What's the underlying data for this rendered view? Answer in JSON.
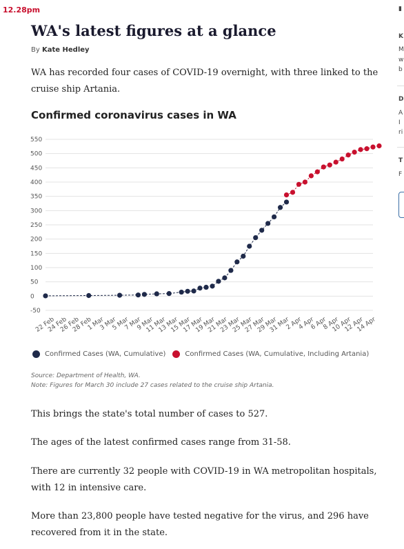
{
  "timestamp": "12.28pm",
  "article": {
    "headline": "WA's latest figures at a glance",
    "byline_prefix": "By",
    "author": "Kate Hedley",
    "intro": "WA has recorded four cases of COVID-19 overnight, with three linked to the cruise ship Artania.",
    "paragraphs": [
      "This brings the state's total number of cases to 527.",
      "The ages of the latest confirmed cases range from 31-58.",
      "There are currently 32 people with COVID-19 in WA metropolitan hospitals, with 12 in intensive care.",
      "More than 23,800 people have tested negative for the virus, and 296 have recovered from it in the state."
    ]
  },
  "chart_title": "Confirmed coronavirus cases in WA",
  "chart_data": {
    "type": "scatter",
    "title": "Confirmed coronavirus cases in WA",
    "xlabel": "",
    "ylabel": "",
    "ylim": [
      -50,
      550
    ],
    "yticks": [
      550,
      500,
      450,
      400,
      350,
      300,
      250,
      200,
      150,
      100,
      50,
      0,
      -50
    ],
    "xlim": [
      "2020-02-21",
      "2020-04-14"
    ],
    "xticks": [
      "22 Feb",
      "24 Feb",
      "26 Feb",
      "28 Feb",
      "1 Mar",
      "3 Mar",
      "5 Mar",
      "7 Mar",
      "9 Mar",
      "11 Mar",
      "13 Mar",
      "15 Mar",
      "17 Mar",
      "19 Mar",
      "21 Mar",
      "23 Mar",
      "25 Mar",
      "27 Mar",
      "29 Mar",
      "31 Mar",
      "2 Apr",
      "4 Apr",
      "6 Apr",
      "8 Apr",
      "10 Apr",
      "12 Apr",
      "14 Apr"
    ],
    "grid": true,
    "legend_position": "bottom",
    "series": [
      {
        "name": "Confirmed Cases (WA, Cumulative)",
        "color": "#1f2a4a",
        "points": [
          [
            "2020-02-21",
            1
          ],
          [
            "2020-02-28",
            2
          ],
          [
            "2020-03-04",
            3
          ],
          [
            "2020-03-07",
            4
          ],
          [
            "2020-03-08",
            6
          ],
          [
            "2020-03-10",
            8
          ],
          [
            "2020-03-12",
            9
          ],
          [
            "2020-03-14",
            14
          ],
          [
            "2020-03-15",
            17
          ],
          [
            "2020-03-16",
            18
          ],
          [
            "2020-03-17",
            28
          ],
          [
            "2020-03-18",
            31
          ],
          [
            "2020-03-19",
            35
          ],
          [
            "2020-03-20",
            52
          ],
          [
            "2020-03-21",
            64
          ],
          [
            "2020-03-22",
            90
          ],
          [
            "2020-03-23",
            120
          ],
          [
            "2020-03-24",
            140
          ],
          [
            "2020-03-25",
            175
          ],
          [
            "2020-03-26",
            205
          ],
          [
            "2020-03-27",
            231
          ],
          [
            "2020-03-28",
            255
          ],
          [
            "2020-03-29",
            278
          ],
          [
            "2020-03-30",
            311
          ],
          [
            "2020-03-31",
            330
          ]
        ]
      },
      {
        "name": "Confirmed Cases (WA, Cumulative, Including Artania)",
        "color": "#c8102e",
        "points": [
          [
            "2020-03-31",
            355
          ],
          [
            "2020-04-01",
            364
          ],
          [
            "2020-04-02",
            392
          ],
          [
            "2020-04-03",
            400
          ],
          [
            "2020-04-04",
            422
          ],
          [
            "2020-04-05",
            436
          ],
          [
            "2020-04-06",
            453
          ],
          [
            "2020-04-07",
            460
          ],
          [
            "2020-04-08",
            470
          ],
          [
            "2020-04-09",
            481
          ],
          [
            "2020-04-10",
            495
          ],
          [
            "2020-04-11",
            505
          ],
          [
            "2020-04-12",
            514
          ],
          [
            "2020-04-13",
            517
          ],
          [
            "2020-04-14",
            523
          ],
          [
            "2020-04-15",
            527
          ]
        ]
      }
    ]
  },
  "source": {
    "line1": "Source: Department of Health, WA.",
    "line2": "Note: Figures for March 30 include 27 cases related to the cruise ship Artania."
  },
  "sidebar": {
    "fragments": [
      "K",
      "M",
      "w",
      "b",
      "D",
      "A",
      "I",
      "ri",
      "T",
      "F"
    ]
  }
}
